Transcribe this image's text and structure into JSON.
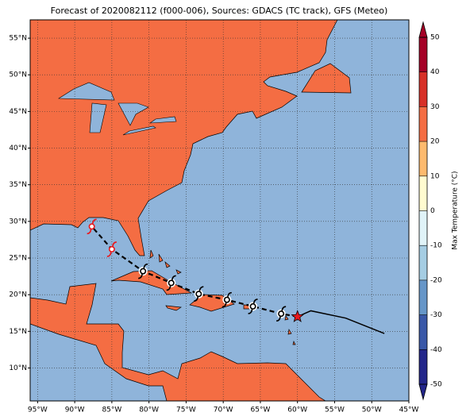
{
  "map": {
    "title": "Forecast of 2020082112 (f000-006), Sources: GDACS (TC track), GFS (Meteo)",
    "extent": {
      "lon": [
        -96,
        -45
      ],
      "lat": [
        5.5,
        57.5
      ]
    },
    "lon_ticks": [
      {
        "value": -95,
        "label": "95°W"
      },
      {
        "value": -90,
        "label": "90°W"
      },
      {
        "value": -85,
        "label": "85°W"
      },
      {
        "value": -80,
        "label": "80°W"
      },
      {
        "value": -75,
        "label": "75°W"
      },
      {
        "value": -70,
        "label": "70°W"
      },
      {
        "value": -65,
        "label": "65°W"
      },
      {
        "value": -60,
        "label": "60°W"
      },
      {
        "value": -55,
        "label": "55°W"
      },
      {
        "value": -50,
        "label": "50°W"
      },
      {
        "value": -45,
        "label": "45°W"
      }
    ],
    "lat_ticks": [
      {
        "value": 10,
        "label": "10°N"
      },
      {
        "value": 15,
        "label": "15°N"
      },
      {
        "value": 20,
        "label": "20°N"
      },
      {
        "value": 25,
        "label": "25°N"
      },
      {
        "value": 30,
        "label": "30°N"
      },
      {
        "value": 35,
        "label": "35°N"
      },
      {
        "value": 40,
        "label": "40°N"
      },
      {
        "value": 45,
        "label": "45°N"
      },
      {
        "value": 50,
        "label": "50°N"
      },
      {
        "value": 55,
        "label": "55°N"
      }
    ],
    "grid": true,
    "colorbar": {
      "label": "Max Temperature (°C)",
      "lim": [
        -50,
        50
      ],
      "ticks": [
        -50,
        -40,
        -30,
        -20,
        -10,
        0,
        10,
        20,
        30,
        40,
        50
      ],
      "colors": [
        "#23268a",
        "#3a58a8",
        "#6696c8",
        "#a5cde3",
        "#e0f3f8",
        "#fffbd0",
        "#fdba6e",
        "#f46d43",
        "#d73027",
        "#a50026"
      ]
    },
    "position": {
      "lon": -60,
      "lat": 17,
      "color": "#e8191e"
    },
    "past_track": {
      "lon": [
        -58.2,
        -53.5,
        -48.3
      ],
      "lat": [
        17.8,
        16.8,
        14.7
      ]
    },
    "forecast_track": {
      "lon": [
        -62.2,
        -66,
        -69.5,
        -73.3,
        -77,
        -80.8,
        -85,
        -87.7
      ],
      "lat": [
        17.4,
        18.4,
        19.3,
        20.1,
        21.6,
        23.2,
        26.2,
        29.3
      ],
      "marker_colors": [
        "#000000",
        "#000000",
        "#000000",
        "#000000",
        "#000000",
        "#000000",
        "#e8191e",
        "#e8191e"
      ]
    }
  }
}
